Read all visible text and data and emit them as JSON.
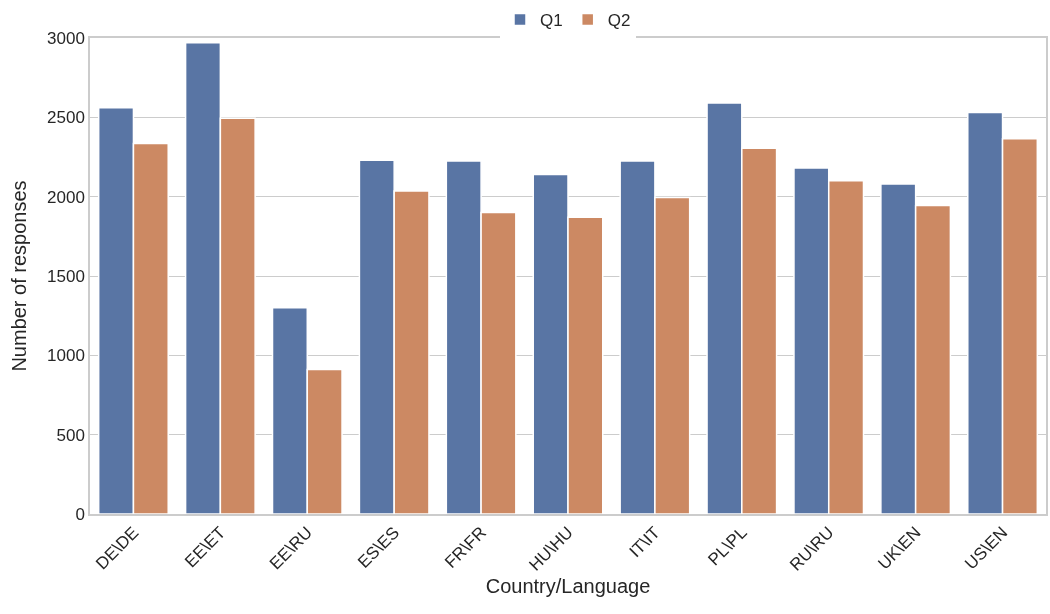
{
  "chart_data": {
    "type": "bar",
    "xlabel": "Country/Language",
    "ylabel": "Number of responses",
    "categories": [
      "DE\\DE",
      "EE\\ET",
      "EE\\RU",
      "ES\\ES",
      "FR\\FR",
      "HU\\HU",
      "IT\\IT",
      "PL\\PL",
      "RU\\RU",
      "UK\\EN",
      "US\\EN"
    ],
    "series": [
      {
        "name": "Q1",
        "color": "#5975a4",
        "values": [
          2560,
          2970,
          1300,
          2230,
          2225,
          2140,
          2225,
          2590,
          2180,
          2080,
          2530
        ]
      },
      {
        "name": "Q2",
        "color": "#cc8963",
        "values": [
          2335,
          2495,
          910,
          2035,
          1900,
          1870,
          1995,
          2305,
          2100,
          1945,
          2365
        ]
      }
    ],
    "ylim": [
      0,
      3000
    ],
    "yticks": [
      0,
      500,
      1000,
      1500,
      2000,
      2500,
      3000
    ],
    "grid": "y",
    "legend": "top"
  }
}
